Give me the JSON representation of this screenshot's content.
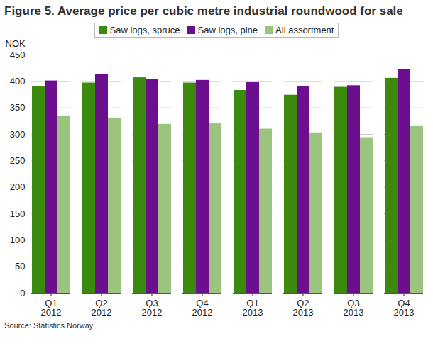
{
  "chart_data": {
    "type": "bar",
    "title": "Figure 5. Average price per cubic metre industrial roundwood for sale",
    "y_label": "NOK",
    "source": "Source: Statistics Norway.",
    "categories": [
      "Q1\n2012",
      "Q2\n2012",
      "Q3\n2012",
      "Q4\n2012",
      "Q1\n2013",
      "Q2\n2013",
      "Q3\n2013",
      "Q4\n2013"
    ],
    "series": [
      {
        "name": "Saw logs, spruce",
        "color": "#3b8a0e",
        "values": [
          390,
          397,
          407,
          397,
          383,
          374,
          389,
          406
        ]
      },
      {
        "name": "Saw logs, pine",
        "color": "#6b0f8f",
        "values": [
          401,
          413,
          404,
          402,
          398,
          390,
          392,
          422
        ]
      },
      {
        "name": "All assortment",
        "color": "#9dc47f",
        "values": [
          335,
          331,
          319,
          320,
          310,
          303,
          294,
          315
        ]
      }
    ],
    "ylim": [
      0,
      450
    ],
    "yticks": [
      0,
      50,
      100,
      150,
      200,
      250,
      300,
      350,
      400,
      450
    ],
    "grid": true,
    "legend": "top"
  }
}
